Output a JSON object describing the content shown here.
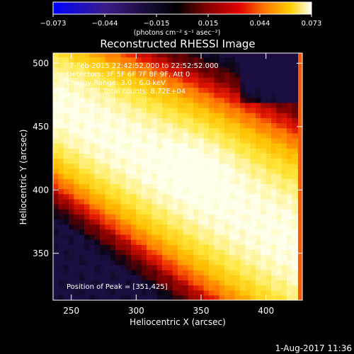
{
  "chart_data": {
    "type": "heatmap",
    "title": "Reconstructed RHESSI Image",
    "xlabel": "Heliocentric X (arcsec)",
    "ylabel": "Heliocentric Y (arcsec)",
    "xlim": [
      236,
      428
    ],
    "ylim": [
      313,
      508
    ],
    "x_ticks": [
      250,
      300,
      350,
      400
    ],
    "y_ticks": [
      350,
      400,
      450,
      500
    ],
    "colorbar": {
      "units_label": "(photons cm⁻² s⁻¹ asec⁻²)",
      "range": [
        -0.073,
        0.073
      ],
      "tick_labels": [
        "−0.073",
        "−0.044",
        "−0.015",
        "0.015",
        "0.044",
        "0.073"
      ],
      "colormap": [
        "#0000ff",
        "#3a1d8a",
        "#000000",
        "#7a0000",
        "#d40000",
        "#ff6a00",
        "#ffc000",
        "#ffffff"
      ]
    },
    "annotations": {
      "time_range": "7-Feb-2015 22:42:52.000 to 22:52:52.000",
      "detectors": "Detectors: 3F 5F 6F 7F 8F 9F, Att 0",
      "energy_range": "Energy Range: 3.0 - 6.0 keV",
      "total_counts": "Total counts: 8.72E+04",
      "peak_position": "Position of Peak = [351,425]"
    },
    "emission_band": {
      "description": "bright diagonal band of emission running from upper-left to lower-right",
      "peak_xy": [
        351,
        425
      ]
    }
  },
  "footer": {
    "date_stamp": "1-Aug-2017 11:36"
  }
}
